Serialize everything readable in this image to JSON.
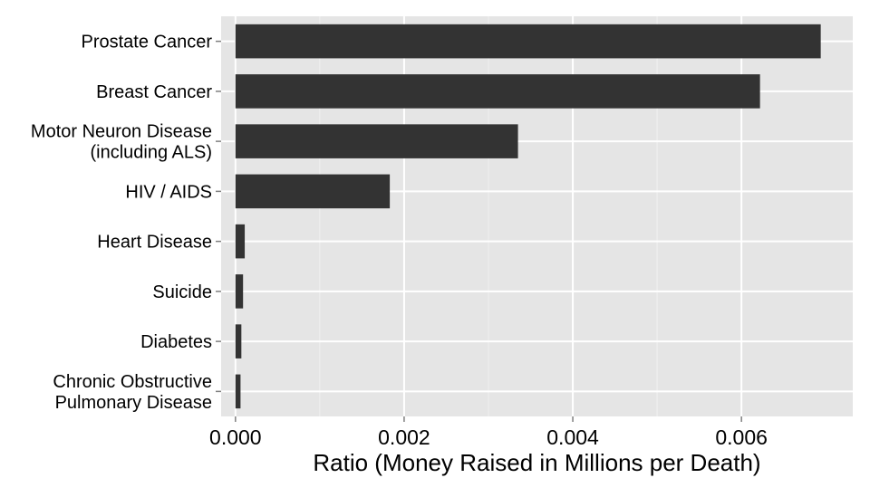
{
  "chart_data": {
    "type": "bar",
    "orientation": "horizontal",
    "title": "",
    "xlabel": "Ratio (Money Raised in Millions per Death)",
    "ylabel": "",
    "xlim": [
      -0.00017,
      0.00732
    ],
    "xticks": [
      0,
      0.002,
      0.004,
      0.006
    ],
    "xtick_labels": [
      "0.000",
      "0.002",
      "0.004",
      "0.006"
    ],
    "grid": true,
    "legend": "none",
    "categories": [
      [
        "Prostate Cancer"
      ],
      [
        "Breast Cancer"
      ],
      [
        "Motor Neuron Disease",
        "(including ALS)"
      ],
      [
        "HIV / AIDS"
      ],
      [
        "Heart Disease"
      ],
      [
        "Suicide"
      ],
      [
        "Diabetes"
      ],
      [
        "Chronic Obstructive",
        "Pulmonary Disease"
      ]
    ],
    "values": [
      0.00694,
      0.00622,
      0.00335,
      0.00183,
      0.00011,
      9e-05,
      7e-05,
      6e-05
    ],
    "colors": {
      "panel": "#e5e5e5",
      "grid_major": "#ffffff",
      "grid_minor": "#f0f0f0",
      "bar": "#333333",
      "tick": "#7f7f7f"
    }
  }
}
